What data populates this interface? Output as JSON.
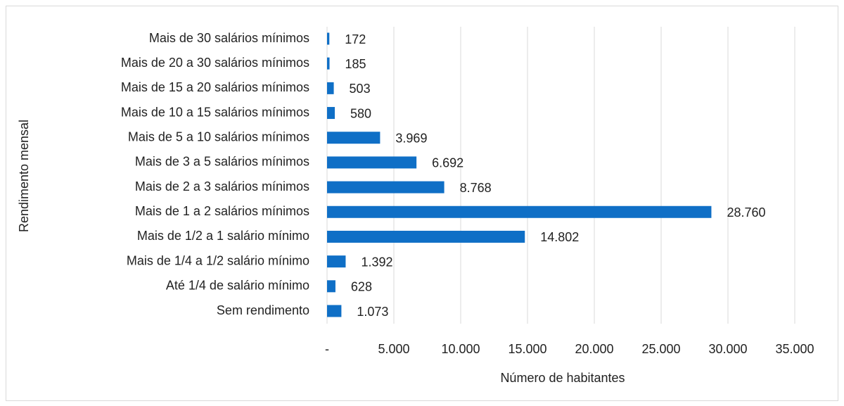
{
  "chart_data": {
    "type": "bar",
    "orientation": "horizontal",
    "categories": [
      "Mais de 30 salários mínimos",
      "Mais de 20 a 30 salários mínimos",
      "Mais de 15 a 20 salários mínimos",
      "Mais de 10 a 15 salários mínimos",
      "Mais de 5 a 10 salários mínimos",
      "Mais de 3 a 5 salários mínimos",
      "Mais de 2 a 3 salários mínimos",
      "Mais de 1 a 2 salários mínimos",
      "Mais de 1/2 a 1 salário mínimo",
      "Mais de 1/4 a 1/2 salário mínimo",
      "Até 1/4 de salário mínimo",
      "Sem rendimento"
    ],
    "values": [
      172,
      185,
      503,
      580,
      3969,
      6692,
      8768,
      28760,
      14802,
      1392,
      628,
      1073
    ],
    "value_labels": [
      "172",
      "185",
      "503",
      "580",
      "3.969",
      "6.692",
      "8.768",
      "28.760",
      "14.802",
      "1.392",
      "628",
      "1.073"
    ],
    "color": "#0f6fc6",
    "xlabel": "Número de habitantes",
    "ylabel": "Rendimento mensal",
    "xlim": [
      0,
      35000
    ],
    "xticks": [
      {
        "value": 0,
        "label": "-"
      },
      {
        "value": 5000,
        "label": "5.000"
      },
      {
        "value": 10000,
        "label": "10.000"
      },
      {
        "value": 15000,
        "label": "15.000"
      },
      {
        "value": 20000,
        "label": "20.000"
      },
      {
        "value": 25000,
        "label": "25.000"
      },
      {
        "value": 30000,
        "label": "30.000"
      },
      {
        "value": 35000,
        "label": "35.000"
      }
    ],
    "grid": true
  }
}
